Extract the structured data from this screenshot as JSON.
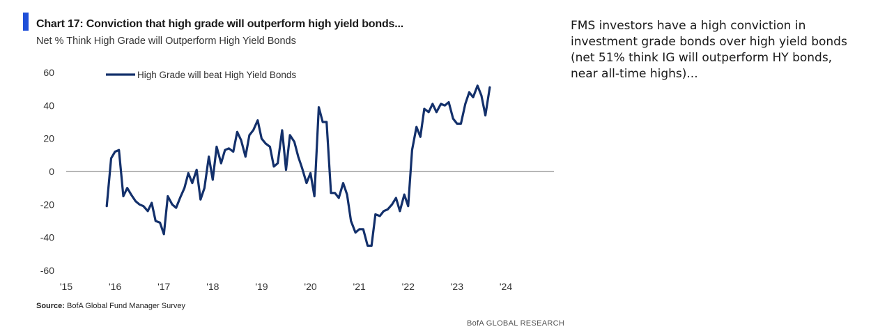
{
  "header": {
    "title": "Chart 17: Conviction that high grade will outperform high yield bonds...",
    "subtitle": "Net % Think High Grade will Outperform High Yield Bonds"
  },
  "footer": {
    "source_label": "Source:",
    "source_text": "BofA Global Fund Manager Survey",
    "brand": "BofA GLOBAL RESEARCH"
  },
  "commentary": "FMS investors have a high conviction in investment grade bonds over high yield bonds (net 51% think IG will outperform HY bonds, near all-time highs)...",
  "colors": {
    "accent": "#1f4fd8",
    "series": "#13306b",
    "zero_line": "#8c8c8c"
  },
  "chart_data": {
    "type": "line",
    "title": "Chart 17: Conviction that high grade will outperform high yield bonds...",
    "subtitle": "Net % Think High Grade will Outperform High Yield Bonds",
    "xlabel": "",
    "ylabel": "",
    "ylim": [
      -60,
      60
    ],
    "yticks": [
      60,
      40,
      20,
      0,
      -20,
      -40,
      -60
    ],
    "xlim": [
      2015,
      2024.1
    ],
    "xticks": [
      {
        "value": 2015,
        "label": "'15"
      },
      {
        "value": 2016,
        "label": "'16"
      },
      {
        "value": 2017,
        "label": "'17"
      },
      {
        "value": 2018,
        "label": "'18"
      },
      {
        "value": 2019,
        "label": "'19"
      },
      {
        "value": 2020,
        "label": "'20"
      },
      {
        "value": 2021,
        "label": "'21"
      },
      {
        "value": 2022,
        "label": "'22"
      },
      {
        "value": 2023,
        "label": "'23"
      },
      {
        "value": 2024,
        "label": "'24"
      }
    ],
    "grid": false,
    "legend": "top-left",
    "series": [
      {
        "name": "High Grade will beat High Yield Bonds",
        "color": "#13306b",
        "points": [
          [
            2015.83,
            -21
          ],
          [
            2015.92,
            8
          ],
          [
            2016.0,
            12
          ],
          [
            2016.08,
            13
          ],
          [
            2016.17,
            -15
          ],
          [
            2016.25,
            -10
          ],
          [
            2016.33,
            -14
          ],
          [
            2016.42,
            -18
          ],
          [
            2016.5,
            -20
          ],
          [
            2016.58,
            -21
          ],
          [
            2016.67,
            -24
          ],
          [
            2016.75,
            -19
          ],
          [
            2016.83,
            -30
          ],
          [
            2016.92,
            -31
          ],
          [
            2017.0,
            -38
          ],
          [
            2017.08,
            -15
          ],
          [
            2017.17,
            -20
          ],
          [
            2017.25,
            -22
          ],
          [
            2017.33,
            -16
          ],
          [
            2017.42,
            -10
          ],
          [
            2017.5,
            -1
          ],
          [
            2017.58,
            -7
          ],
          [
            2017.67,
            1
          ],
          [
            2017.75,
            -17
          ],
          [
            2017.83,
            -10
          ],
          [
            2017.92,
            9
          ],
          [
            2018.0,
            -5
          ],
          [
            2018.08,
            15
          ],
          [
            2018.17,
            5
          ],
          [
            2018.25,
            13
          ],
          [
            2018.33,
            14
          ],
          [
            2018.42,
            12
          ],
          [
            2018.5,
            24
          ],
          [
            2018.58,
            19
          ],
          [
            2018.67,
            9
          ],
          [
            2018.75,
            22
          ],
          [
            2018.83,
            25
          ],
          [
            2018.92,
            31
          ],
          [
            2019.0,
            20
          ],
          [
            2019.08,
            17
          ],
          [
            2019.17,
            15
          ],
          [
            2019.25,
            3
          ],
          [
            2019.33,
            5
          ],
          [
            2019.42,
            25
          ],
          [
            2019.5,
            1
          ],
          [
            2019.58,
            22
          ],
          [
            2019.67,
            18
          ],
          [
            2019.75,
            9
          ],
          [
            2019.83,
            2
          ],
          [
            2019.92,
            -7
          ],
          [
            2020.0,
            -1
          ],
          [
            2020.08,
            -15
          ],
          [
            2020.17,
            39
          ],
          [
            2020.25,
            30
          ],
          [
            2020.33,
            30
          ],
          [
            2020.42,
            -13
          ],
          [
            2020.5,
            -13
          ],
          [
            2020.58,
            -16
          ],
          [
            2020.67,
            -7
          ],
          [
            2020.75,
            -14
          ],
          [
            2020.83,
            -30
          ],
          [
            2020.92,
            -37
          ],
          [
            2021.0,
            -35
          ],
          [
            2021.08,
            -35
          ],
          [
            2021.17,
            -45
          ],
          [
            2021.25,
            -45
          ],
          [
            2021.33,
            -26
          ],
          [
            2021.42,
            -27
          ],
          [
            2021.5,
            -24
          ],
          [
            2021.58,
            -23
          ],
          [
            2021.67,
            -20
          ],
          [
            2021.75,
            -16
          ],
          [
            2021.83,
            -24
          ],
          [
            2021.92,
            -14
          ],
          [
            2022.0,
            -21
          ],
          [
            2022.08,
            13
          ],
          [
            2022.17,
            27
          ],
          [
            2022.25,
            21
          ],
          [
            2022.33,
            38
          ],
          [
            2022.42,
            36
          ],
          [
            2022.5,
            41
          ],
          [
            2022.58,
            36
          ],
          [
            2022.67,
            41
          ],
          [
            2022.75,
            40
          ],
          [
            2022.83,
            42
          ],
          [
            2022.92,
            32
          ],
          [
            2023.0,
            29
          ],
          [
            2023.08,
            29
          ],
          [
            2023.17,
            41
          ],
          [
            2023.25,
            48
          ],
          [
            2023.33,
            45
          ],
          [
            2023.42,
            52
          ],
          [
            2023.5,
            46
          ],
          [
            2023.58,
            34
          ],
          [
            2023.67,
            51
          ]
        ]
      }
    ]
  }
}
